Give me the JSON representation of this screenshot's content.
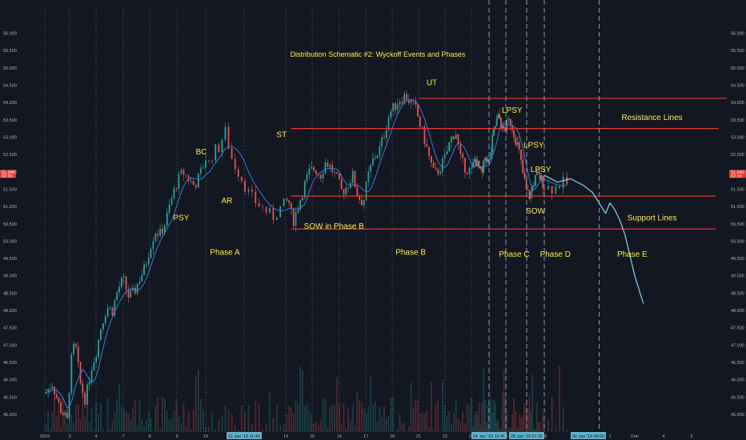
{
  "chart_data": {
    "type": "line",
    "title": "Distribution Schematic #2: Wyckoff Events and Phases",
    "ylim": [
      44.7,
      56.3
    ],
    "y_ticks": [
      "45.000",
      "45.500",
      "46.000",
      "46.500",
      "47.000",
      "47.500",
      "48.000",
      "48.500",
      "49.000",
      "49.500",
      "50.000",
      "50.500",
      "51.000",
      "51.500",
      "52.000",
      "52.500",
      "53.000",
      "53.500",
      "54.000",
      "54.500",
      "55.000",
      "55.500",
      "56.000"
    ],
    "y_tick_values": [
      45.0,
      45.5,
      46.0,
      46.5,
      47.0,
      47.5,
      48.0,
      48.5,
      49.0,
      49.5,
      50.0,
      50.5,
      51.0,
      51.5,
      52.0,
      52.5,
      53.0,
      53.5,
      54.0,
      54.5,
      55.0,
      55.5,
      56.0
    ],
    "x_ticks": [
      "2019",
      "3",
      "4",
      "7",
      "8",
      "9",
      "10",
      "11 Jan '19   11:45",
      "14",
      "15",
      "16",
      "17",
      "18",
      "21",
      "22",
      "23",
      "24 Jan '19   15:45",
      "25",
      "28 Jan '19   07:30",
      "29",
      "30 Jan '19   09:00",
      "1",
      "Feb",
      "4",
      "5"
    ],
    "x_tick_index": [
      0,
      1,
      2,
      3,
      4,
      5,
      6,
      7,
      8,
      9,
      10,
      11,
      12,
      13,
      14,
      15,
      16,
      17,
      18,
      19,
      20,
      21,
      22,
      23,
      24
    ],
    "highlighted_x_ticks": [
      7,
      16,
      18,
      20
    ],
    "current_price_label": "51.940",
    "current_time_label": "02:30",
    "current_price": 51.94,
    "price_series": {
      "name": "",
      "x": [
        0,
        0.3,
        0.6,
        0.9,
        1.05,
        1.2,
        1.4,
        1.6,
        1.8,
        2.0,
        2.2,
        2.4,
        2.6,
        2.8,
        3.0,
        3.2,
        3.4,
        3.6,
        3.8,
        4.0,
        4.2,
        4.4,
        4.6,
        4.8,
        5.0,
        5.2,
        5.4,
        5.6,
        5.8,
        6.0,
        6.1,
        6.2,
        6.35,
        6.5,
        6.7,
        6.9,
        7.1,
        7.3,
        7.5,
        7.7,
        7.9,
        8.1,
        8.2,
        8.3,
        8.5,
        8.7,
        8.9,
        9.1,
        9.3,
        9.5,
        9.7,
        9.9,
        10.1,
        10.3,
        10.5,
        10.7,
        10.9,
        11.1,
        11.3,
        11.5,
        11.7,
        11.9,
        12.1,
        12.3,
        12.5,
        12.7,
        12.9,
        13.0,
        13.2,
        13.4,
        13.6,
        13.8,
        14.0,
        14.2,
        14.4,
        14.6,
        14.8,
        15.0,
        15.2,
        15.4,
        15.6,
        15.8,
        16.0,
        16.2,
        16.4,
        16.6,
        16.8,
        17.0,
        17.2,
        17.4,
        17.6,
        17.8,
        18.0,
        18.2,
        18.4,
        18.6,
        18.8,
        19.0,
        19.2,
        19.4,
        19.6
      ],
      "y": [
        45.6,
        45.9,
        45.2,
        44.8,
        46.5,
        47.1,
        45.9,
        45.4,
        46.3,
        46.8,
        47.6,
        48.1,
        48.0,
        48.6,
        48.9,
        48.4,
        48.5,
        48.9,
        49.2,
        49.8,
        50.3,
        50.2,
        50.6,
        51.2,
        51.7,
        52.0,
        51.8,
        51.6,
        51.9,
        52.4,
        52.2,
        52.6,
        52.7,
        53.2,
        52.3,
        51.9,
        51.4,
        51.1,
        50.9,
        50.7,
        51.0,
        51.2,
        50.8,
        50.6,
        51.1,
        51.6,
        52.0,
        52.1,
        51.9,
        52.3,
        52.1,
        51.8,
        51.4,
        51.6,
        51.9,
        51.3,
        51.1,
        51.9,
        52.4,
        52.6,
        53.1,
        53.7,
        53.9,
        54.1,
        54.2,
        54.0,
        53.8,
        53.5,
        53.0,
        52.4,
        51.9,
        52.1,
        52.4,
        52.9,
        53.2,
        52.3,
        52.1,
        52.0,
        52.4,
        52.1,
        51.9,
        52.5,
        52.2,
        52.9,
        53.4,
        53.6,
        53.2,
        53.3,
        53.5,
        53.1,
        52.7,
        52.0,
        51.4,
        51.3,
        51.7,
        51.9,
        51.8,
        51.6,
        51.5,
        51.7,
        51.6
      ]
    },
    "projection_series": {
      "name": "",
      "x": [
        19.0,
        19.3,
        19.6,
        19.9,
        20.2,
        20.4,
        20.6,
        20.8,
        21.0,
        21.2,
        21.4,
        21.6,
        21.8,
        22.0,
        22.3
      ],
      "y": [
        51.9,
        51.7,
        51.8,
        51.6,
        51.4,
        51.2,
        51.0,
        50.8,
        51.1,
        50.9,
        50.6,
        50.2,
        49.6,
        49.0,
        48.2
      ]
    },
    "horizontal_lines": [
      {
        "y": 54.12,
        "x_start": 13.0
      },
      {
        "y": 53.25,
        "x_start": 8.2
      },
      {
        "y": 51.3,
        "x_start": 8.2
      },
      {
        "y": 50.35,
        "x_start": 8.2
      }
    ],
    "vertical_lines": [
      16.0,
      17.0,
      18.0,
      19.0,
      20.5
    ],
    "event_labels": [
      {
        "text": "PSY",
        "x": 5.15,
        "y": 50.6
      },
      {
        "text": "BC",
        "x": 5.85,
        "y": 52.5
      },
      {
        "text": "AR",
        "x": 6.55,
        "y": 51.1
      },
      {
        "text": "ST",
        "x": 7.9,
        "y": 53.0
      },
      {
        "text": "SOW in Phase B",
        "x": 9.8,
        "y": 50.35
      },
      {
        "text": "UT",
        "x": 13.5,
        "y": 54.5
      },
      {
        "text": "LPSY",
        "x": 17.3,
        "y": 53.7
      },
      {
        "text": "LPSY",
        "x": 18.4,
        "y": 52.7
      },
      {
        "text": "LPSY",
        "x": 18.8,
        "y": 52.0
      },
      {
        "text": "SOW",
        "x": 18.5,
        "y": 50.8
      }
    ],
    "phase_labels": [
      {
        "text": "Phase A",
        "x": 6.5,
        "y": 49.6
      },
      {
        "text": "Phase B",
        "x": 12.7,
        "y": 49.6
      },
      {
        "text": "Phase C",
        "x": 17.4,
        "y": 49.55
      },
      {
        "text": "Phase D",
        "x": 19.25,
        "y": 49.55
      },
      {
        "text": "Phase E",
        "x": 21.9,
        "y": 49.55
      }
    ],
    "side_labels": [
      {
        "text": "Resistance Lines",
        "x": 22.6,
        "y": 53.5
      },
      {
        "text": "Support Lines",
        "x": 22.6,
        "y": 50.6
      }
    ],
    "grid": false,
    "colors": {
      "background": "#131722",
      "axis_text": "#b2b5be",
      "candle_up": "#26a69a",
      "candle_down": "#ef5350",
      "moving_average": "#3d7bd6",
      "annotation_text": "#ffeb3b",
      "level_lines": "#e53935",
      "projection": "#7ec8e3",
      "dashed_verticals": "#8c9ab5",
      "price_badge": "#e53935",
      "date_badge": "#5fb3cf"
    }
  }
}
